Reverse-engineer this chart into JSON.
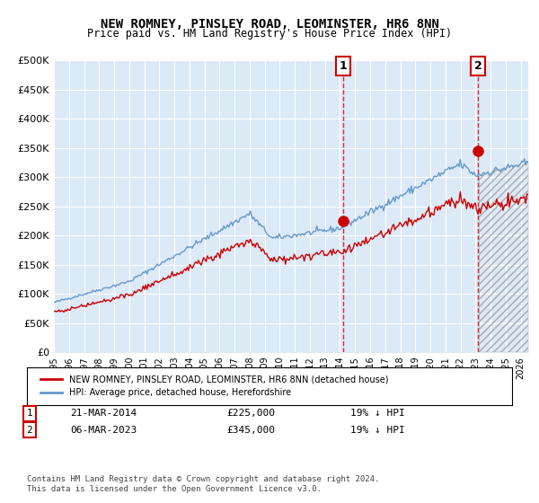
{
  "title": "NEW ROMNEY, PINSLEY ROAD, LEOMINSTER, HR6 8NN",
  "subtitle": "Price paid vs. HM Land Registry's House Price Index (HPI)",
  "legend_label_red": "NEW ROMNEY, PINSLEY ROAD, LEOMINSTER, HR6 8NN (detached house)",
  "legend_label_blue": "HPI: Average price, detached house, Herefordshire",
  "annotation1_label": "1",
  "annotation1_date": "21-MAR-2014",
  "annotation1_price": "£225,000",
  "annotation1_hpi": "19% ↓ HPI",
  "annotation2_label": "2",
  "annotation2_date": "06-MAR-2023",
  "annotation2_price": "£345,000",
  "annotation2_hpi": "19% ↓ HPI",
  "footer": "Contains HM Land Registry data © Crown copyright and database right 2024.\nThis data is licensed under the Open Government Licence v3.0.",
  "ylim": [
    0,
    500000
  ],
  "yticks": [
    0,
    50000,
    100000,
    150000,
    200000,
    250000,
    300000,
    350000,
    400000,
    450000,
    500000
  ],
  "xlim_start": 1995.0,
  "xlim_end": 2026.5,
  "sale1_x": 2014.22,
  "sale1_y": 225000,
  "sale2_x": 2023.18,
  "sale2_y": 345000,
  "background_color": "#ffffff",
  "plot_bg_color": "#dce9f7",
  "hatch_color": "#c0c0c0",
  "grid_color": "#ffffff",
  "red_color": "#cc0000",
  "blue_color": "#6699cc",
  "hpi_fill_color": "#dce9f7"
}
